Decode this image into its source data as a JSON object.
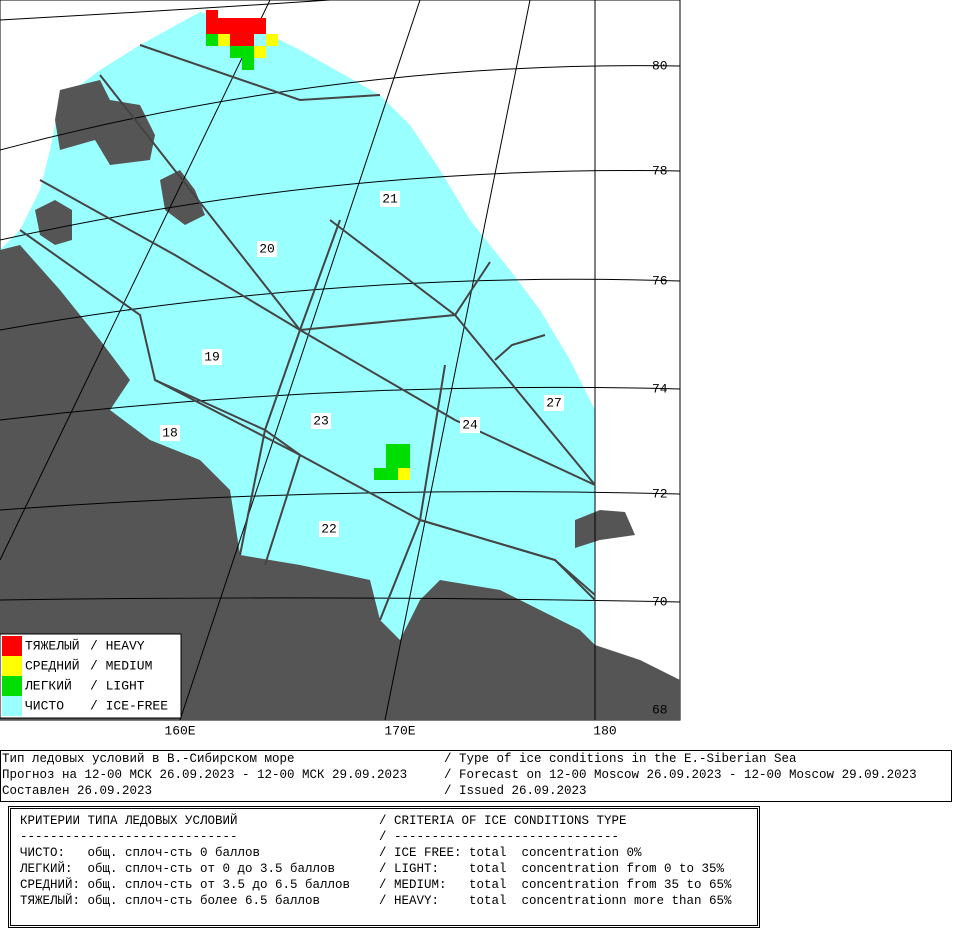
{
  "map": {
    "lat_labels": [
      "80",
      "78",
      "76",
      "74",
      "72",
      "70",
      "68"
    ],
    "lon_labels": [
      "160E",
      "170E",
      "180"
    ],
    "regions": [
      "21",
      "20",
      "19",
      "23",
      "24",
      "27",
      "18",
      "22"
    ],
    "legend": [
      {
        "ru": "ТЯЖЕЛЫЙ",
        "en": "/ HEAVY",
        "color": "#ff0000"
      },
      {
        "ru": "СРЕДНИЙ",
        "en": "/ MEDIUM",
        "color": "#ffff00"
      },
      {
        "ru": "ЛЕГКИЙ",
        "en": "/ LIGHT",
        "color": "#00dd00"
      },
      {
        "ru": "ЧИСТО",
        "en": "/ ICE-FREE",
        "color": "#99ffff"
      }
    ]
  },
  "header": {
    "rows": [
      [
        "Тип ледовых условий в В.-Сибирском море",
        "/ Type of ice conditions in the E.-Siberian Sea"
      ],
      [
        "Прогноз на 12-00 МСК 26.09.2023 - 12-00 МСК 29.09.2023",
        "/ Forecast on 12-00 Moscow 26.09.2023 - 12-00 Moscow 29.09.2023"
      ],
      [
        "Составлен 26.09.2023",
        "/ Issued 26.09.2023"
      ]
    ]
  },
  "criteria": {
    "rows": [
      [
        "КРИТЕРИИ ТИПА ЛЕДОВЫХ УСЛОВИЙ",
        "/ CRITERIA OF ICE CONDITIONS TYPE"
      ],
      [
        "-----------------------------",
        "/ ------------------------------"
      ],
      [
        "ЧИСТО:   общ. сплоч-сть 0 баллов",
        "/ ICE FREE: total  concentration 0%"
      ],
      [
        "ЛЕГКИЙ:  общ. сплоч-сть от 0 до 3.5 баллов",
        "/ LIGHT:    total  concentration from 0 to 35%"
      ],
      [
        "СРЕДНИЙ: общ. сплоч-сть от 3.5 до 6.5 баллов",
        "/ MEDIUM:   total  concentration from 35 to 65%"
      ],
      [
        "ТЯЖЕЛЫЙ: общ. сплоч-сть более 6.5 баллов",
        "/ HEAVY:    total  concentrationn more than 65%"
      ]
    ]
  }
}
